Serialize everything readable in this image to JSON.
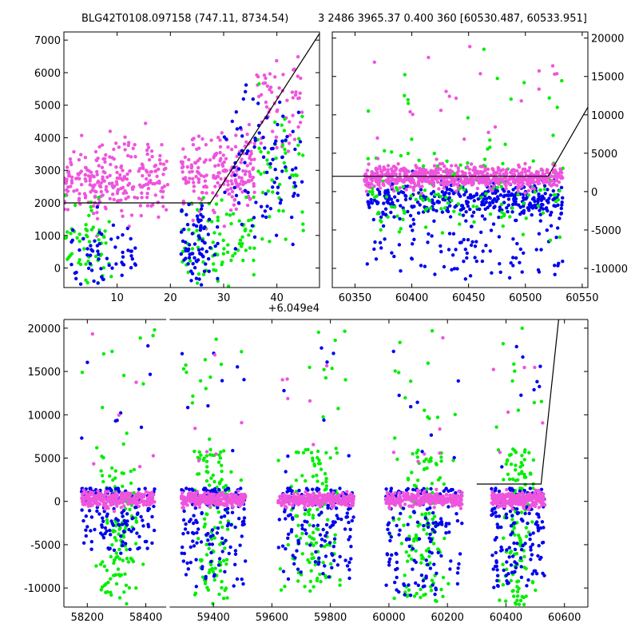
{
  "figure": {
    "title_left": "BLG42T0108.097158 (747.11, 8734.54)",
    "title_right": "3 2486 3965.37 0.400 360 [60530.487, 60533.951]",
    "series_colors": {
      "green": "#00ee00",
      "blue": "#0000ee",
      "violet": "#ee55dd"
    },
    "model_color": "#000000"
  },
  "chart_data": [
    {
      "id": "top-left",
      "type": "scatter",
      "title": "",
      "xlabel": "",
      "ylabel": "",
      "x_offset_label": "+6.049e4",
      "xlim": [
        0,
        48
      ],
      "ylim": [
        -600,
        7250
      ],
      "xticks": [
        10,
        20,
        30,
        40
      ],
      "yticks": [
        0,
        1000,
        2000,
        3000,
        4000,
        5000,
        6000,
        7000
      ],
      "y_axis_side": "left",
      "model_line": {
        "x": [
          0,
          27.5,
          48
        ],
        "y": [
          2000,
          2000,
          7200
        ]
      },
      "clusters": [
        {
          "color": "violet",
          "x": [
            0,
            19.5
          ],
          "y": [
            1500,
            3900
          ],
          "n": 260
        },
        {
          "color": "violet",
          "x": [
            22,
            36
          ],
          "y": [
            1500,
            4400
          ],
          "n": 200
        },
        {
          "color": "violet",
          "x": [
            36,
            45
          ],
          "y": [
            3500,
            6500
          ],
          "n": 60
        },
        {
          "color": "green",
          "x": [
            0,
            9
          ],
          "y": [
            -600,
            2100
          ],
          "n": 60
        },
        {
          "color": "green",
          "x": [
            22,
            36
          ],
          "y": [
            -600,
            2200
          ],
          "n": 90
        },
        {
          "color": "green",
          "x": [
            36,
            45
          ],
          "y": [
            1000,
            5500
          ],
          "n": 50
        },
        {
          "color": "blue",
          "x": [
            1,
            14
          ],
          "y": [
            -600,
            1500
          ],
          "n": 60
        },
        {
          "color": "blue",
          "x": [
            22,
            29
          ],
          "y": [
            -600,
            2200
          ],
          "n": 80
        },
        {
          "color": "blue",
          "x": [
            30,
            45
          ],
          "y": [
            800,
            5600
          ],
          "n": 90
        }
      ]
    },
    {
      "id": "top-right",
      "type": "scatter",
      "title": "",
      "xlabel": "",
      "ylabel": "",
      "xlim": [
        60330,
        60555
      ],
      "ylim": [
        -12500,
        20800
      ],
      "xticks": [
        60350,
        60400,
        60450,
        60500,
        60550
      ],
      "yticks": [
        -10000,
        -5000,
        0,
        5000,
        10000,
        15000,
        20000
      ],
      "y_axis_side": "right",
      "model_line": {
        "x": [
          60330,
          60520,
          60555
        ],
        "y": [
          2000,
          2000,
          11000
        ]
      },
      "clusters": [
        {
          "color": "violet",
          "x": [
            60358,
            60533
          ],
          "y": [
            300,
            3500
          ],
          "n": 650
        },
        {
          "color": "blue",
          "x": [
            60360,
            60533
          ],
          "y": [
            -3800,
            1500
          ],
          "n": 360
        },
        {
          "color": "blue",
          "x": [
            60360,
            60533
          ],
          "y": [
            -12000,
            -3500
          ],
          "n": 90
        },
        {
          "color": "green",
          "x": [
            60360,
            60533
          ],
          "y": [
            -6000,
            6000
          ],
          "n": 140
        },
        {
          "color": "violet",
          "x": [
            60360,
            60533
          ],
          "y": [
            3500,
            20000
          ],
          "n": 22
        },
        {
          "color": "green",
          "x": [
            60360,
            60533
          ],
          "y": [
            5000,
            17000
          ],
          "n": 14
        }
      ]
    },
    {
      "id": "bottom",
      "type": "scatter",
      "title": "",
      "xlabel": "",
      "ylabel": "",
      "xlim": [
        58120,
        60680
      ],
      "ylim": [
        -12200,
        21000
      ],
      "xticks": [
        58200,
        58400,
        59400,
        59600,
        59800,
        60000,
        60200,
        60400,
        60600
      ],
      "yticks": [
        -10000,
        -5000,
        0,
        5000,
        10000,
        15000,
        20000
      ],
      "y_axis_side": "left",
      "x_break": [
        58470,
        59250
      ],
      "model_line": {
        "x": [
          60300,
          60520,
          60580
        ],
        "y": [
          2000,
          2000,
          21000
        ]
      },
      "seasons": [
        {
          "x": [
            58180,
            58430
          ],
          "blue": [
            -6000,
            1500
          ],
          "green": [
            -12000,
            4000
          ]
        },
        {
          "x": [
            59290,
            59510
          ],
          "blue": [
            -10000,
            1500
          ],
          "green": [
            -12000,
            6000
          ]
        },
        {
          "x": [
            59620,
            59880
          ],
          "blue": [
            -9000,
            1500
          ],
          "green": [
            -11000,
            6000
          ]
        },
        {
          "x": [
            59990,
            60250
          ],
          "blue": [
            -11000,
            1500
          ],
          "green": [
            -12000,
            6000
          ]
        },
        {
          "x": [
            60350,
            60533
          ],
          "blue": [
            -10000,
            1500
          ],
          "green": [
            -12000,
            6000
          ]
        }
      ]
    }
  ]
}
